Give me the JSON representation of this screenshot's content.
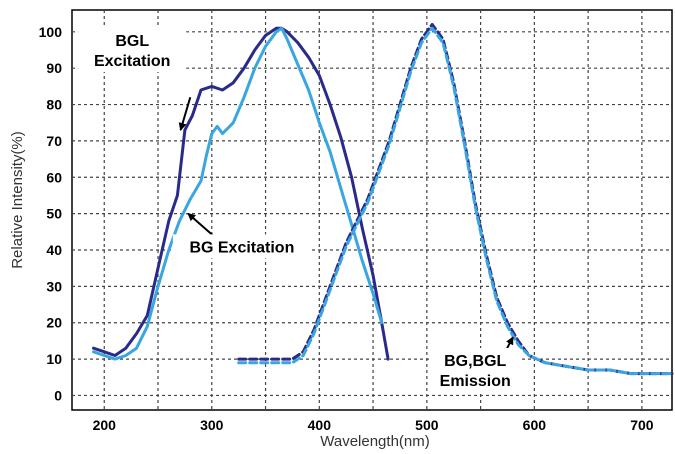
{
  "chart_data": {
    "type": "line",
    "title": "",
    "xlabel": "Wavelength(nm)",
    "ylabel": "Relative Intensity(%)",
    "xlim": [
      170,
      728
    ],
    "ylim": [
      -4,
      106
    ],
    "grid": true,
    "x_ticks": [
      "200",
      "300",
      "400",
      "500",
      "600",
      "700"
    ],
    "y_ticks": [
      "0",
      "10",
      "20",
      "30",
      "40",
      "50",
      "60",
      "70",
      "80",
      "90",
      "100"
    ],
    "colors": {
      "dark": "#2a2a8a",
      "light": "#3aa6df"
    },
    "series": [
      {
        "id": "bgl_excitation",
        "color": "#2a2a8a",
        "dashed": false,
        "x": [
          190,
          200,
          210,
          220,
          230,
          240,
          250,
          260,
          268,
          275,
          282,
          290,
          300,
          310,
          320,
          330,
          340,
          350,
          360,
          365,
          370,
          380,
          390,
          400,
          410,
          420,
          430,
          440,
          450,
          458,
          464
        ],
        "y": [
          13,
          12,
          11,
          13,
          17,
          22,
          35,
          48,
          55,
          73,
          77,
          84,
          85,
          84,
          86,
          90,
          95,
          99,
          101,
          101,
          100,
          97,
          93,
          88,
          80,
          71,
          60,
          46,
          33,
          20,
          10
        ]
      },
      {
        "id": "bg_excitation",
        "color": "#3aa6df",
        "dashed": false,
        "x": [
          190,
          200,
          210,
          220,
          230,
          240,
          250,
          260,
          270,
          280,
          290,
          295,
          300,
          305,
          310,
          320,
          330,
          340,
          350,
          360,
          365,
          370,
          380,
          390,
          400,
          410,
          420,
          430,
          440,
          450,
          458
        ],
        "y": [
          12,
          11,
          10,
          11,
          13,
          19,
          30,
          40,
          48,
          54,
          59,
          66,
          72,
          74,
          72,
          75,
          82,
          90,
          96,
          100,
          101,
          98,
          91,
          84,
          75,
          67,
          57,
          47,
          37,
          28,
          20
        ]
      },
      {
        "id": "bgl_emission",
        "color": "#2a2a8a",
        "dashed": true,
        "x": [
          325,
          340,
          355,
          365,
          375,
          385,
          395,
          405,
          415,
          425,
          435,
          445,
          455,
          465,
          475,
          485,
          495,
          505,
          515,
          525,
          535,
          545,
          555,
          565,
          575,
          585,
          595,
          610,
          630,
          650,
          670,
          690,
          710,
          728
        ],
        "y": [
          10,
          10,
          10,
          10,
          10,
          12,
          18,
          26,
          34,
          42,
          48,
          54,
          62,
          70,
          80,
          90,
          98,
          102,
          98,
          86,
          70,
          53,
          39,
          27,
          20,
          15,
          11,
          9,
          8,
          7,
          7,
          6,
          6,
          6
        ]
      },
      {
        "id": "bg_emission",
        "color": "#3aa6df",
        "dashed": true,
        "x": [
          325,
          340,
          355,
          365,
          375,
          385,
          395,
          405,
          415,
          425,
          435,
          445,
          455,
          465,
          475,
          485,
          495,
          505,
          515,
          525,
          535,
          545,
          555,
          565,
          575,
          585,
          595,
          610,
          630,
          650,
          670,
          690,
          710,
          728
        ],
        "y": [
          9,
          9,
          9,
          9,
          9,
          11,
          17,
          25,
          33,
          41,
          47,
          53,
          61,
          69,
          79,
          89,
          97,
          101,
          97,
          85,
          69,
          52,
          38,
          26,
          19,
          14,
          11,
          9,
          8,
          7,
          7,
          6,
          6,
          6
        ]
      }
    ],
    "annotations": [
      {
        "id": "bgl_excitation_label",
        "lines": [
          "BGL",
          "Excitation"
        ],
        "text_at": [
          226,
          95
        ],
        "arrow_from": [
          280,
          82
        ],
        "arrow_to": [
          271,
          73
        ]
      },
      {
        "id": "bg_excitation_label",
        "lines": [
          "BG Excitation"
        ],
        "text_at": [
          328,
          41
        ],
        "arrow_from": [
          305,
          43
        ],
        "arrow_to": [
          278,
          50
        ]
      },
      {
        "id": "emission_label",
        "lines": [
          "BG,BGL",
          "Emission"
        ],
        "text_at": [
          545,
          7
        ],
        "arrow_from": [
          564,
          7
        ],
        "arrow_to": [
          580,
          16
        ]
      }
    ]
  }
}
